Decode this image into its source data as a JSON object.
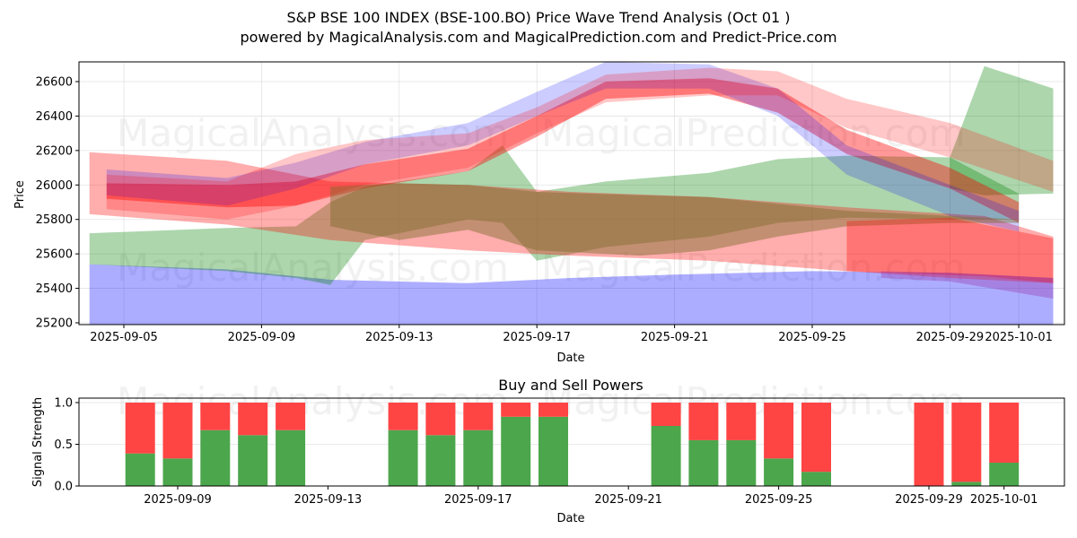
{
  "header": {
    "title": "S&P BSE 100 INDEX (BSE-100.BO) Price Wave Trend Analysis (Oct 01 )",
    "subtitle": "powered by MagicalAnalysis.com and MagicalPrediction.com and Predict-Price.com"
  },
  "watermarks": [
    "MagicalAnalysis.com",
    "MagicalPrediction.com"
  ],
  "chart_data": [
    {
      "type": "area",
      "title": "S&P BSE 100 INDEX (BSE-100.BO) Price Wave Trend Analysis (Oct 01 )",
      "xlabel": "Date",
      "ylabel": "Price",
      "x_range": [
        "2025-09-03.6",
        "2025-10-02.9"
      ],
      "ylim": [
        25180,
        26720
      ],
      "grid": true,
      "x_ticks": [
        "2025-09-05",
        "2025-09-09",
        "2025-09-13",
        "2025-09-17",
        "2025-09-21",
        "2025-09-25",
        "2025-09-29",
        "2025-10-01"
      ],
      "y_ticks": [
        25200,
        25400,
        25600,
        25800,
        26000,
        26200,
        26400,
        26600
      ],
      "colors": {
        "red": "#ff0000",
        "blue": "#0000ff",
        "green": "#008000"
      },
      "bands": [
        {
          "name": "blue-wide-lower",
          "color": "blue",
          "opacity": 0.32,
          "x": [
            "2025-09-04",
            "2025-09-08",
            "2025-09-11",
            "2025-09-15",
            "2025-09-18",
            "2025-09-21",
            "2025-09-25",
            "2025-09-29",
            "2025-10-02"
          ],
          "upper": [
            25540,
            25510,
            25450,
            25430,
            25460,
            25480,
            25500,
            25490,
            25460
          ],
          "lower": [
            25190,
            25190,
            25190,
            25190,
            25190,
            25190,
            25190,
            25190,
            25190
          ]
        },
        {
          "name": "green-lower",
          "color": "green",
          "opacity": 0.32,
          "x": [
            "2025-09-04",
            "2025-09-08",
            "2025-09-10",
            "2025-09-11",
            "2025-09-12",
            "2025-09-15",
            "2025-09-16",
            "2025-09-17",
            "2025-09-19",
            "2025-09-22",
            "2025-09-24",
            "2025-09-26",
            "2025-09-29",
            "2025-10-01"
          ],
          "upper": [
            25720,
            25750,
            25760,
            25900,
            25990,
            26080,
            26230,
            25960,
            26020,
            26070,
            26150,
            26170,
            26160,
            25950
          ],
          "lower": [
            25540,
            25500,
            25460,
            25420,
            25680,
            25800,
            25780,
            25560,
            25640,
            25700,
            25780,
            25810,
            25800,
            25800
          ]
        },
        {
          "name": "green-spike",
          "color": "green",
          "opacity": 0.32,
          "x": [
            "2025-09-29",
            "2025-09-30",
            "2025-10-02"
          ],
          "upper": [
            26160,
            26690,
            26560
          ],
          "lower": [
            25980,
            25940,
            25950
          ]
        },
        {
          "name": "red-wide-flat",
          "color": "red",
          "opacity": 0.32,
          "x": [
            "2025-09-04",
            "2025-09-08",
            "2025-09-11",
            "2025-09-15",
            "2025-09-18",
            "2025-09-22",
            "2025-09-26",
            "2025-09-30",
            "2025-10-02"
          ],
          "upper": [
            26190,
            26140,
            26020,
            26000,
            25960,
            25930,
            25870,
            25820,
            25700
          ],
          "lower": [
            25830,
            25770,
            25680,
            25620,
            25590,
            25560,
            25500,
            25470,
            25430
          ]
        },
        {
          "name": "red-core",
          "color": "red",
          "opacity": 0.4,
          "x": [
            "2025-09-04.5",
            "2025-09-08",
            "2025-09-10",
            "2025-09-12",
            "2025-09-15",
            "2025-09-17",
            "2025-09-19",
            "2025-09-22",
            "2025-09-24",
            "2025-09-26",
            "2025-09-29",
            "2025-10-01"
          ],
          "upper": [
            26010,
            26000,
            26020,
            26120,
            26210,
            26400,
            26600,
            26620,
            26560,
            26320,
            26100,
            25900
          ],
          "lower": [
            25920,
            25870,
            25880,
            25980,
            26080,
            26280,
            26500,
            26530,
            26420,
            26180,
            25980,
            25780
          ]
        },
        {
          "name": "blue-upper-wave",
          "color": "blue",
          "opacity": 0.2,
          "x": [
            "2025-09-04.5",
            "2025-09-08",
            "2025-09-10",
            "2025-09-12",
            "2025-09-15",
            "2025-09-17",
            "2025-09-19",
            "2025-09-22",
            "2025-09-24",
            "2025-09-26",
            "2025-09-29",
            "2025-10-01"
          ],
          "upper": [
            26090,
            26040,
            26130,
            26250,
            26360,
            26540,
            26720,
            26700,
            26560,
            26230,
            26000,
            25850
          ],
          "lower": [
            25940,
            25880,
            25980,
            26120,
            26230,
            26400,
            26560,
            26560,
            26400,
            26060,
            25820,
            25730
          ]
        },
        {
          "name": "red-upper-wide",
          "color": "red",
          "opacity": 0.22,
          "x": [
            "2025-09-04.5",
            "2025-09-08",
            "2025-09-10",
            "2025-09-12",
            "2025-09-15",
            "2025-09-17",
            "2025-09-19",
            "2025-09-22",
            "2025-09-24",
            "2025-09-26",
            "2025-09-29",
            "2025-10-02"
          ],
          "upper": [
            26060,
            26020,
            26180,
            26260,
            26300,
            26450,
            26640,
            26680,
            26660,
            26500,
            26360,
            26140
          ],
          "lower": [
            25860,
            25800,
            25880,
            26000,
            26100,
            26300,
            26480,
            26520,
            26520,
            26330,
            26160,
            25960
          ]
        },
        {
          "name": "olive-mid",
          "color": "olive",
          "opacity": 0.45,
          "x": [
            "2025-09-11",
            "2025-09-13",
            "2025-09-15",
            "2025-09-17",
            "2025-09-20",
            "2025-09-22",
            "2025-09-24",
            "2025-09-26",
            "2025-09-29",
            "2025-10-01"
          ],
          "upper": [
            25990,
            26010,
            26000,
            25960,
            25940,
            25930,
            25890,
            25850,
            25820,
            25800
          ],
          "lower": [
            25760,
            25680,
            25740,
            25620,
            25590,
            25620,
            25700,
            25760,
            25780,
            25780
          ]
        },
        {
          "name": "red-right-tail",
          "color": "red",
          "opacity": 0.32,
          "x": [
            "2025-09-26",
            "2025-09-29",
            "2025-10-02"
          ],
          "upper": [
            25790,
            25810,
            25690
          ],
          "lower": [
            25500,
            25460,
            25430
          ]
        },
        {
          "name": "purple-right-tail",
          "color": "purple",
          "opacity": 0.35,
          "x": [
            "2025-09-27",
            "2025-09-29",
            "2025-10-02"
          ],
          "upper": [
            25500,
            25490,
            25460
          ],
          "lower": [
            25460,
            25440,
            25340
          ]
        }
      ]
    },
    {
      "type": "bar",
      "title": "Buy and Sell Powers",
      "xlabel": "Date",
      "ylabel": "Signal Strength",
      "ylim": [
        0,
        1.05
      ],
      "y_ticks": [
        0.0,
        0.5,
        1.0
      ],
      "y_tick_labels": [
        "0.0",
        "0.5",
        "1.0"
      ],
      "x_ticks": [
        "2025-09-09",
        "2025-09-13",
        "2025-09-17",
        "2025-09-21",
        "2025-09-25",
        "2025-09-29",
        "2025-10-01"
      ],
      "grid": true,
      "colors": {
        "buy": "#4ca64c",
        "sell": "#ff4444"
      },
      "categories": [
        "2025-09-08",
        "2025-09-09",
        "2025-09-10",
        "2025-09-11",
        "2025-09-12",
        "2025-09-15",
        "2025-09-16",
        "2025-09-17",
        "2025-09-18",
        "2025-09-19",
        "2025-09-22",
        "2025-09-23",
        "2025-09-24",
        "2025-09-25",
        "2025-09-26",
        "2025-09-29",
        "2025-09-30",
        "2025-10-01"
      ],
      "series": [
        {
          "name": "Buy",
          "values": [
            0.39,
            0.33,
            0.67,
            0.61,
            0.67,
            0.67,
            0.61,
            0.67,
            0.83,
            0.83,
            0.72,
            0.55,
            0.55,
            0.33,
            0.17,
            0.0,
            0.05,
            0.28
          ]
        },
        {
          "name": "Sell",
          "values": [
            0.61,
            0.67,
            0.33,
            0.39,
            0.33,
            0.33,
            0.39,
            0.33,
            0.17,
            0.17,
            0.28,
            0.45,
            0.45,
            0.67,
            0.83,
            1.0,
            0.95,
            0.72
          ]
        }
      ]
    }
  ]
}
